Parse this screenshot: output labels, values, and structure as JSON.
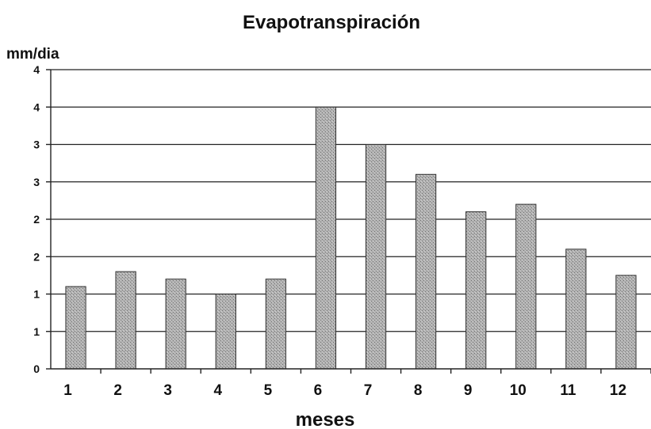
{
  "chart_data": {
    "type": "bar",
    "title": "Evapotranspiración",
    "ylabel": "mm/dia",
    "xlabel": "meses",
    "categories": [
      "1",
      "2",
      "3",
      "4",
      "5",
      "6",
      "7",
      "8",
      "9",
      "10",
      "11",
      "12"
    ],
    "values": [
      1.1,
      1.3,
      1.2,
      1.0,
      1.2,
      3.5,
      3.0,
      2.6,
      2.1,
      2.2,
      1.6,
      1.25
    ],
    "ylim": [
      0,
      4
    ],
    "ytick_labels": [
      "0",
      "1",
      "1",
      "2",
      "2",
      "3",
      "3",
      "4",
      "4"
    ],
    "grid": true,
    "legend": "none",
    "colors": {
      "bar": "#a8a8a8",
      "grid": "#222222"
    }
  }
}
